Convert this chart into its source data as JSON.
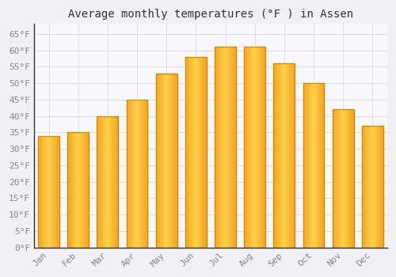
{
  "title": "Average monthly temperatures (°F ) in Assen",
  "months": [
    "Jan",
    "Feb",
    "Mar",
    "Apr",
    "May",
    "Jun",
    "Jul",
    "Aug",
    "Sep",
    "Oct",
    "Nov",
    "Dec"
  ],
  "values": [
    34,
    35,
    40,
    45,
    53,
    58,
    61,
    61,
    56,
    50,
    42,
    37
  ],
  "bar_color_left": "#F5A623",
  "bar_color_center": "#FFD04A",
  "bar_color_right": "#F5A623",
  "bar_edge_color": "#CC8800",
  "background_color": "#F0F0F5",
  "plot_bg_color": "#F8F8FC",
  "grid_color": "#DDDDEE",
  "ylim": [
    0,
    68
  ],
  "yticks": [
    0,
    5,
    10,
    15,
    20,
    25,
    30,
    35,
    40,
    45,
    50,
    55,
    60,
    65
  ],
  "title_fontsize": 10,
  "tick_fontsize": 8,
  "tick_color": "#888888",
  "spine_color": "#AAAAAA",
  "left_spine_color": "#333333"
}
